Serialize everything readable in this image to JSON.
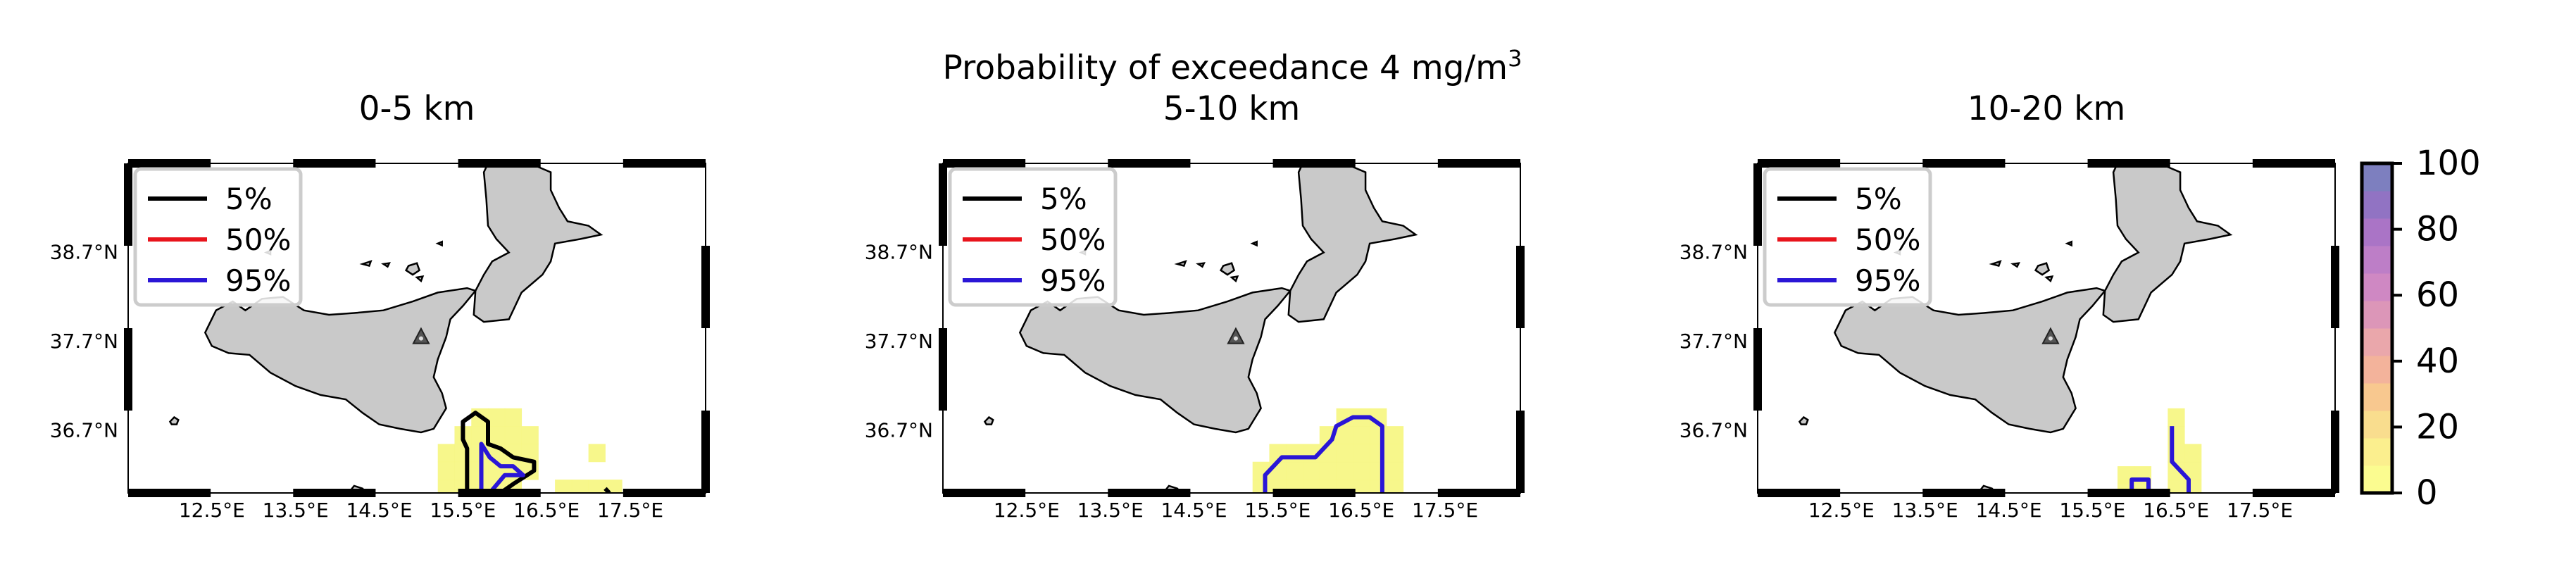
{
  "figure": {
    "suptitle_main": "Probability of exceedance 4 mg/m",
    "suptitle_sup": "3"
  },
  "chart_data": [
    {
      "type": "heatmap",
      "title": "0-5 km",
      "x_ticks": [
        "12.5°E",
        "13.5°E",
        "14.5°E",
        "15.5°E",
        "16.5°E",
        "17.5°E"
      ],
      "y_ticks": [
        "38.7°N",
        "37.7°N",
        "36.7°N"
      ],
      "legend": [
        {
          "label": "5%",
          "color": "#000000"
        },
        {
          "label": "50%",
          "color": "#e8141c"
        },
        {
          "label": "95%",
          "color": "#2a16d6"
        }
      ],
      "cells": [
        {
          "lon": 15.3,
          "lat": 36.45
        },
        {
          "lon": 15.3,
          "lat": 36.25
        },
        {
          "lon": 15.3,
          "lat": 36.05
        },
        {
          "lon": 15.5,
          "lat": 36.65
        },
        {
          "lon": 15.5,
          "lat": 36.45
        },
        {
          "lon": 15.5,
          "lat": 36.25
        },
        {
          "lon": 15.5,
          "lat": 36.05
        },
        {
          "lon": 15.7,
          "lat": 36.85
        },
        {
          "lon": 15.7,
          "lat": 36.65
        },
        {
          "lon": 15.7,
          "lat": 36.45
        },
        {
          "lon": 15.7,
          "lat": 36.25
        },
        {
          "lon": 15.7,
          "lat": 36.05
        },
        {
          "lon": 15.9,
          "lat": 36.85
        },
        {
          "lon": 15.9,
          "lat": 36.65
        },
        {
          "lon": 15.9,
          "lat": 36.45
        },
        {
          "lon": 15.9,
          "lat": 36.25
        },
        {
          "lon": 15.9,
          "lat": 36.05
        },
        {
          "lon": 16.1,
          "lat": 36.85
        },
        {
          "lon": 16.1,
          "lat": 36.65
        },
        {
          "lon": 16.1,
          "lat": 36.45
        },
        {
          "lon": 16.1,
          "lat": 36.25
        },
        {
          "lon": 16.1,
          "lat": 36.05
        },
        {
          "lon": 16.3,
          "lat": 36.65
        },
        {
          "lon": 16.3,
          "lat": 36.45
        },
        {
          "lon": 16.3,
          "lat": 36.25
        },
        {
          "lon": 16.7,
          "lat": 36.05
        },
        {
          "lon": 16.9,
          "lat": 36.05
        },
        {
          "lon": 17.1,
          "lat": 36.05
        },
        {
          "lon": 17.1,
          "lat": 36.45
        },
        {
          "lon": 17.3,
          "lat": 36.05
        }
      ],
      "contours": [
        {
          "level": "5%",
          "color": "#000000",
          "points": [
            [
              15.55,
              36.0
            ],
            [
              15.55,
              36.5
            ],
            [
              15.5,
              36.6
            ],
            [
              15.5,
              36.8
            ],
            [
              15.65,
              36.9
            ],
            [
              15.8,
              36.8
            ],
            [
              15.8,
              36.55
            ],
            [
              15.95,
              36.5
            ],
            [
              16.1,
              36.4
            ],
            [
              16.35,
              36.35
            ],
            [
              16.35,
              36.25
            ],
            [
              16.1,
              36.1
            ],
            [
              15.95,
              36.0
            ]
          ]
        },
        {
          "level": "95%",
          "color": "#2a16d6",
          "points": [
            [
              15.72,
              36.0
            ],
            [
              15.72,
              36.55
            ],
            [
              15.82,
              36.4
            ],
            [
              15.95,
              36.3
            ],
            [
              16.1,
              36.3
            ],
            [
              16.22,
              36.2
            ],
            [
              16.0,
              36.2
            ],
            [
              15.82,
              36.0
            ]
          ]
        },
        {
          "level": "5%",
          "color": "#000000",
          "points": [
            [
              17.2,
              36.05
            ],
            [
              17.25,
              36.0
            ]
          ]
        }
      ],
      "volcano": {
        "lon": 15.0,
        "lat": 37.75
      }
    },
    {
      "type": "heatmap",
      "title": "5-10 km",
      "x_ticks": [
        "12.5°E",
        "13.5°E",
        "14.5°E",
        "15.5°E",
        "16.5°E",
        "17.5°E"
      ],
      "y_ticks": [
        "38.7°N",
        "37.7°N",
        "36.7°N"
      ],
      "legend": [
        {
          "label": "5%",
          "color": "#000000"
        },
        {
          "label": "50%",
          "color": "#e8141c"
        },
        {
          "label": "95%",
          "color": "#2a16d6"
        }
      ],
      "cells": [
        {
          "lon": 15.3,
          "lat": 36.05
        },
        {
          "lon": 15.3,
          "lat": 36.25
        },
        {
          "lon": 15.5,
          "lat": 36.05
        },
        {
          "lon": 15.5,
          "lat": 36.25
        },
        {
          "lon": 15.5,
          "lat": 36.45
        },
        {
          "lon": 15.7,
          "lat": 36.05
        },
        {
          "lon": 15.7,
          "lat": 36.25
        },
        {
          "lon": 15.7,
          "lat": 36.45
        },
        {
          "lon": 15.9,
          "lat": 36.05
        },
        {
          "lon": 15.9,
          "lat": 36.25
        },
        {
          "lon": 15.9,
          "lat": 36.45
        },
        {
          "lon": 16.1,
          "lat": 36.05
        },
        {
          "lon": 16.1,
          "lat": 36.25
        },
        {
          "lon": 16.1,
          "lat": 36.45
        },
        {
          "lon": 16.1,
          "lat": 36.65
        },
        {
          "lon": 16.3,
          "lat": 36.05
        },
        {
          "lon": 16.3,
          "lat": 36.25
        },
        {
          "lon": 16.3,
          "lat": 36.45
        },
        {
          "lon": 16.3,
          "lat": 36.65
        },
        {
          "lon": 16.3,
          "lat": 36.85
        },
        {
          "lon": 16.5,
          "lat": 36.05
        },
        {
          "lon": 16.5,
          "lat": 36.25
        },
        {
          "lon": 16.5,
          "lat": 36.45
        },
        {
          "lon": 16.5,
          "lat": 36.65
        },
        {
          "lon": 16.5,
          "lat": 36.85
        },
        {
          "lon": 16.7,
          "lat": 36.05
        },
        {
          "lon": 16.7,
          "lat": 36.25
        },
        {
          "lon": 16.7,
          "lat": 36.45
        },
        {
          "lon": 16.7,
          "lat": 36.65
        },
        {
          "lon": 16.7,
          "lat": 36.85
        },
        {
          "lon": 16.9,
          "lat": 36.05
        },
        {
          "lon": 16.9,
          "lat": 36.25
        },
        {
          "lon": 16.9,
          "lat": 36.45
        },
        {
          "lon": 16.9,
          "lat": 36.65
        }
      ],
      "contours": [
        {
          "level": "95%",
          "color": "#2a16d6",
          "points": [
            [
              15.35,
              36.0
            ],
            [
              15.35,
              36.2
            ],
            [
              15.55,
              36.4
            ],
            [
              15.95,
              36.4
            ],
            [
              16.15,
              36.6
            ],
            [
              16.2,
              36.75
            ],
            [
              16.4,
              36.85
            ],
            [
              16.6,
              36.85
            ],
            [
              16.75,
              36.75
            ],
            [
              16.75,
              36.0
            ]
          ]
        }
      ],
      "volcano": {
        "lon": 15.0,
        "lat": 37.75
      }
    },
    {
      "type": "heatmap",
      "title": "10-20 km",
      "x_ticks": [
        "12.5°E",
        "13.5°E",
        "14.5°E",
        "15.5°E",
        "16.5°E",
        "17.5°E"
      ],
      "y_ticks": [
        "38.7°N",
        "37.7°N",
        "36.7°N"
      ],
      "legend": [
        {
          "label": "5%",
          "color": "#000000"
        },
        {
          "label": "50%",
          "color": "#e8141c"
        },
        {
          "label": "95%",
          "color": "#2a16d6"
        }
      ],
      "cells": [
        {
          "lon": 15.9,
          "lat": 36.05
        },
        {
          "lon": 15.9,
          "lat": 36.2
        },
        {
          "lon": 16.1,
          "lat": 36.05
        },
        {
          "lon": 16.1,
          "lat": 36.2
        },
        {
          "lon": 16.5,
          "lat": 36.05
        },
        {
          "lon": 16.5,
          "lat": 36.25
        },
        {
          "lon": 16.5,
          "lat": 36.45
        },
        {
          "lon": 16.5,
          "lat": 36.65
        },
        {
          "lon": 16.5,
          "lat": 36.85
        },
        {
          "lon": 16.7,
          "lat": 36.05
        },
        {
          "lon": 16.7,
          "lat": 36.25
        },
        {
          "lon": 16.7,
          "lat": 36.45
        }
      ],
      "contours": [
        {
          "level": "95%",
          "color": "#2a16d6",
          "points": [
            [
              15.97,
              36.0
            ],
            [
              15.97,
              36.15
            ],
            [
              16.17,
              36.15
            ],
            [
              16.17,
              36.0
            ]
          ]
        },
        {
          "level": "95%",
          "color": "#2a16d6",
          "points": [
            [
              16.45,
              36.75
            ],
            [
              16.45,
              36.35
            ],
            [
              16.65,
              36.15
            ],
            [
              16.65,
              36.0
            ]
          ]
        }
      ],
      "volcano": {
        "lon": 15.0,
        "lat": 37.75
      }
    }
  ],
  "colorbar": {
    "ticks": [
      "0",
      "20",
      "40",
      "60",
      "80",
      "100"
    ],
    "colors": [
      "#fbfc90",
      "#fbef8e",
      "#f9dd8e",
      "#f8c88f",
      "#f3b39b",
      "#eaa7ab",
      "#dc96b8",
      "#cf88c3",
      "#bd7ec7",
      "#aa74c6",
      "#9173c3",
      "#7d7fbf"
    ]
  }
}
